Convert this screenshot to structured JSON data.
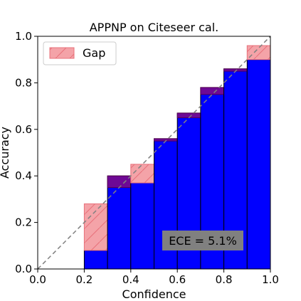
{
  "chart_data": {
    "type": "bar",
    "title": "APPNP on Citeseer cal.",
    "xlabel": "Confidence",
    "ylabel": "Accuracy",
    "xlim": [
      0.0,
      1.0
    ],
    "ylim": [
      0.0,
      1.0
    ],
    "xticks": [
      "0.0",
      "0.2",
      "0.4",
      "0.6",
      "0.8",
      "1.0"
    ],
    "yticks": [
      "0.0",
      "0.2",
      "0.4",
      "0.6",
      "0.8",
      "1.0"
    ],
    "bins": [
      {
        "lo": 0.2,
        "hi": 0.3,
        "accuracy": 0.08,
        "confidence": 0.28
      },
      {
        "lo": 0.3,
        "hi": 0.4,
        "accuracy": 0.4,
        "confidence": 0.35
      },
      {
        "lo": 0.4,
        "hi": 0.5,
        "accuracy": 0.37,
        "confidence": 0.45
      },
      {
        "lo": 0.5,
        "hi": 0.6,
        "accuracy": 0.56,
        "confidence": 0.55
      },
      {
        "lo": 0.6,
        "hi": 0.7,
        "accuracy": 0.67,
        "confidence": 0.65
      },
      {
        "lo": 0.7,
        "hi": 0.8,
        "accuracy": 0.78,
        "confidence": 0.75
      },
      {
        "lo": 0.8,
        "hi": 0.9,
        "accuracy": 0.86,
        "confidence": 0.85
      },
      {
        "lo": 0.9,
        "hi": 1.0,
        "accuracy": 0.9,
        "confidence": 0.96
      }
    ],
    "legend": {
      "label": "Gap",
      "position": "top-left"
    },
    "annotation": "ECE = 5.1%",
    "diagonal": true,
    "grid": false,
    "colors": {
      "accuracy_bar": "#0000ff",
      "gap_fill": "#f4a3a8",
      "gap_edge": "#e8707a",
      "overlap": "#7a0a8a",
      "diagonal": "#808080",
      "annotation_bg": "#808080"
    }
  }
}
